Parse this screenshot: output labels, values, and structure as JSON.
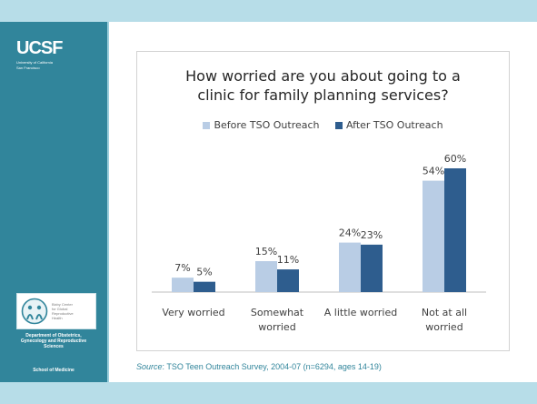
{
  "logo": {
    "mark": "UCSF",
    "sub_line1": "University of California",
    "sub_line2": "San Francisco"
  },
  "badge": {
    "line1": "Bixby Center",
    "line2": "for Global",
    "line3": "Reproductive",
    "line4": "Health"
  },
  "sidebar": {
    "dept_line1": "Department of Obstetrics,",
    "dept_line2": "Gynecology and Reproductive",
    "dept_line3": "Sciences",
    "school": "School of Medicine"
  },
  "colors": {
    "before": "#b9cde5",
    "after": "#2e5d8e",
    "sidebar": "#31859b",
    "band": "#b7dde8"
  },
  "source": {
    "label": "Source",
    "text": ":  TSO Teen Outreach Survey, 2004-07 (n=6294, ages 14-19)"
  },
  "chart_data": {
    "type": "bar",
    "title_line1": "How worried are you about going to a",
    "title_line2": "clinic for family planning services?",
    "categories": [
      [
        "Very worried"
      ],
      [
        "Somewhat",
        "worried"
      ],
      [
        "A little worried"
      ],
      [
        "Not at all",
        "worried"
      ]
    ],
    "series": [
      {
        "name": "Before TSO Outreach",
        "values": [
          7,
          15,
          24,
          54
        ],
        "labels": [
          "7%",
          "15%",
          "24%",
          "54%"
        ]
      },
      {
        "name": "After TSO Outreach",
        "values": [
          5,
          11,
          23,
          60
        ],
        "labels": [
          "5%",
          "11%",
          "23%",
          "60%"
        ]
      }
    ],
    "ylim": [
      0,
      60
    ],
    "grid": false,
    "legend_position": "top"
  }
}
